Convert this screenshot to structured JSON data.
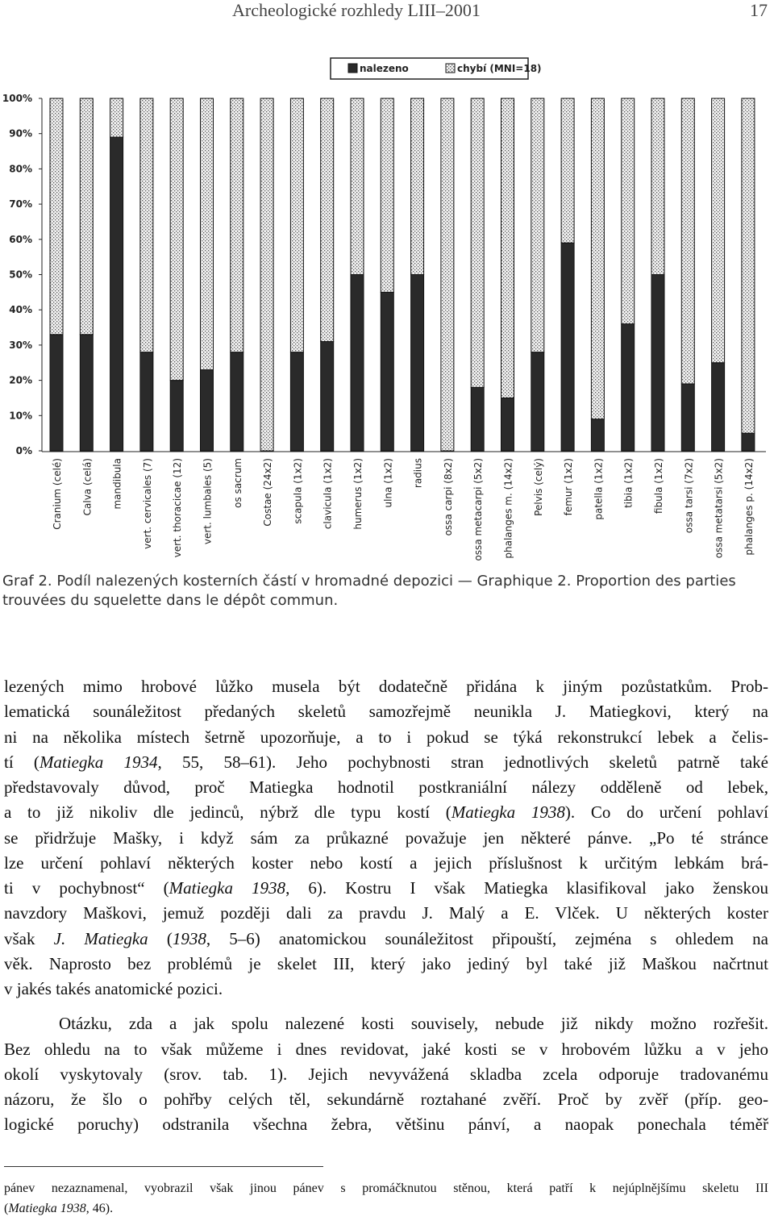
{
  "header": {
    "title": "Archeologické rozhledy LIII–2001",
    "page": "17"
  },
  "chart_data": {
    "type": "stacked_bar",
    "categories": [
      "Cranium (celé)",
      "Calva (celá)",
      "mandibula",
      "vert. cervicales (7)",
      "vert. thoracicae (12)",
      "vert. lumbales (5)",
      "os sacrum",
      "Costae (24x2)",
      "scapula (1x2)",
      "clavicula (1x2)",
      "humerus (1x2)",
      "ulna (1x2)",
      "radius",
      "ossa carpi (8x2)",
      "ossa metacarpi (5x2)",
      "phalanges m. (14x2)",
      "Pelvis (celý)",
      "femur (1x2)",
      "patella (1x2)",
      "tibia (1x2)",
      "fibula (1x2)",
      "ossa tarsi (7x2)",
      "ossa metatarsi (5x2)",
      "phalanges p. (14x2)"
    ],
    "series": [
      {
        "name": "nalezeno",
        "color": "#2a2a2a",
        "values": [
          33,
          33,
          89,
          28,
          20,
          23,
          28,
          0,
          28,
          31,
          50,
          45,
          50,
          0,
          18,
          15,
          28,
          59,
          9,
          36,
          50,
          19,
          25,
          5
        ]
      },
      {
        "name": "chybí (MNI=18)",
        "color": "stipple",
        "values": [
          67,
          67,
          11,
          72,
          80,
          77,
          72,
          100,
          72,
          69,
          50,
          55,
          50,
          100,
          82,
          85,
          72,
          41,
          91,
          64,
          50,
          81,
          75,
          95
        ]
      }
    ],
    "ylim": [
      0,
      100
    ],
    "yticks": [
      {
        "value": 0,
        "label": "0%"
      },
      {
        "value": 10,
        "label": "10%"
      },
      {
        "value": 20,
        "label": "20%"
      },
      {
        "value": 30,
        "label": "30%"
      },
      {
        "value": 40,
        "label": "40%"
      },
      {
        "value": 50,
        "label": "50%"
      },
      {
        "value": 60,
        "label": "60%"
      },
      {
        "value": 70,
        "label": "70%"
      },
      {
        "value": 80,
        "label": "80%"
      },
      {
        "value": 90,
        "label": "90%"
      },
      {
        "value": 100,
        "label": "100%"
      }
    ],
    "grid": false,
    "legend": "top"
  },
  "caption": [
    "Graf 2. Podíl nalezených kosterních částí v hromadné depozici — Graphique 2. Proportion des parties",
    "trouvées du squelette dans le dépôt commun."
  ],
  "paragraphs": [
    [
      [
        "lezených mimo hrobové lůžko musela být dodatečně přidána k jiným pozůstatkům. Prob-"
      ],
      [
        "lematická sounáležitost předaných skeletů samozřejmě neunikla J. Matiegkovi, který na"
      ],
      [
        "ni na několika místech šetrně upozorňuje, a to i pokud se týká rekonstrukcí lebek a čelis-"
      ],
      [
        "tí (",
        {
          "text": "Matiegka 1934",
          "italic": true
        },
        ", 55, 58–61). Jeho pochybnosti stran jednotlivých skeletů patrně také"
      ],
      [
        "představovaly důvod, proč Matiegka hodnotil postkraniální nálezy odděleně od lebek,"
      ],
      [
        "a to již nikoliv dle jedinců, nýbrž dle typu kostí (",
        {
          "text": "Matiegka 1938",
          "italic": true
        },
        "). Co do určení pohlaví"
      ],
      [
        "se přidržuje Mašky, i když sám za průkazné považuje jen některé pánve. „Po té stránce"
      ],
      [
        "lze určení pohlaví některých koster nebo kostí a jejich příslušnost k určitým lebkám brá-"
      ],
      [
        "ti v pochybnost“ (",
        {
          "text": "Matiegka 1938",
          "italic": true
        },
        ", 6). Kostru I však Matiegka klasifikoval jako ženskou"
      ],
      [
        "navzdory Maškovi, jemuž později dali za pravdu J. Malý a E. Vlček. U některých koster"
      ],
      [
        "však ",
        {
          "text": "J. Matiegka",
          "italic": true
        },
        " (",
        {
          "text": "1938",
          "italic": true
        },
        ", 5–6) anatomickou sounáležitost připouští, zejména s ohledem na"
      ],
      [
        "věk. Naprosto bez problémů je skelet III, který jako jediný byl také již Maškou načrtnut"
      ],
      [
        "v jakés takés anatomické pozici."
      ]
    ],
    [
      [
        "Otázku, zda a jak spolu nalezené kosti souvisely, nebude již nikdy možno rozřešit."
      ],
      [
        "Bez ohledu na to však můžeme i dnes revidovat, jaké kosti se v hrobovém lůžku a v jeho"
      ],
      [
        "okolí vyskytovaly (srov. tab. 1). Jejich nevyvážená skladba zcela odporuje tradovanému"
      ],
      [
        "názoru, že šlo o pohřby celých těl, sekundárně roztahané zvěří. Proč by zvěř (příp. geo-"
      ],
      [
        "logické poruchy) odstranila všechna žebra, většinu pánví, a naopak ponechala téměř"
      ]
    ]
  ],
  "footnote": [
    [
      "pánev nezaznamenal, vyobrazil však jinou pánev s promáčknutou stěnou, která patří k nejúplnějšímu skeletu III"
    ],
    [
      "(",
      {
        "text": "Matiegka 1938",
        "italic": true
      },
      ", 46)."
    ]
  ]
}
